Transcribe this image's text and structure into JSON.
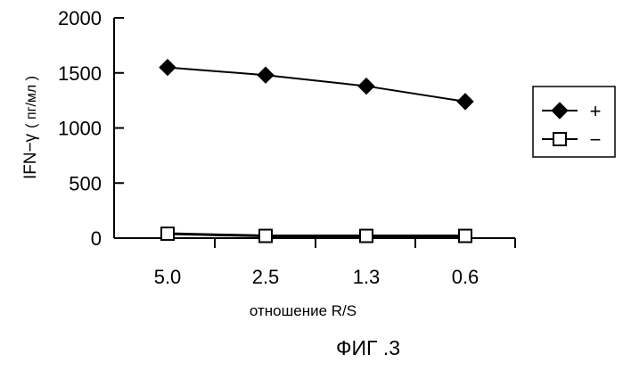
{
  "figure_caption": "ФИГ .3",
  "chart_data": {
    "type": "line",
    "categories": [
      "5.0",
      "2.5",
      "1.3",
      "0.6"
    ],
    "series": [
      {
        "name": "+",
        "values": [
          1550,
          1480,
          1380,
          1240
        ],
        "marker": "filled-diamond",
        "color": "#000000"
      },
      {
        "name": "−",
        "values": [
          40,
          20,
          20,
          20
        ],
        "marker": "open-square",
        "color": "#000000"
      }
    ],
    "xlabel": "отношение R/S",
    "ylabel_main": "IFN−γ",
    "ylabel_unit": "( пг/мл )",
    "ylim": [
      0,
      2000
    ],
    "yticks": [
      0,
      500,
      1000,
      1500,
      2000
    ],
    "grid": false,
    "legend_position": "right"
  }
}
